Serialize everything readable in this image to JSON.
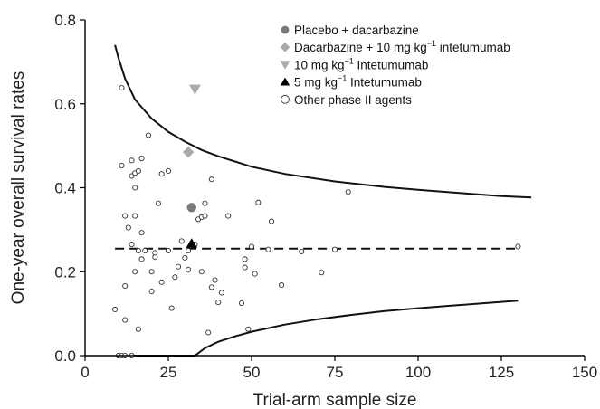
{
  "chart_data": {
    "type": "scatter",
    "xlabel": "Trial-arm sample size",
    "ylabel": "One-year overall survival rates",
    "xlim": [
      0,
      150
    ],
    "ylim": [
      0,
      0.8
    ],
    "x_ticks": [
      0,
      25,
      50,
      75,
      100,
      125,
      150
    ],
    "x_tick_labels": [
      "0",
      "25",
      "50",
      "75",
      "100",
      "125",
      "150"
    ],
    "y_ticks": [
      0.0,
      0.2,
      0.4,
      0.6,
      0.8
    ],
    "y_tick_labels": [
      "0.0",
      "0.2",
      "0.4",
      "0.6",
      "0.8"
    ],
    "grid": false,
    "legend_position": "top-right",
    "colors": {
      "axis": "#000000",
      "curve": "#111111",
      "placebo": "#7a7a7a",
      "diamond": "#a9a9a9",
      "triangle_down": "#a9a9a9",
      "triangle_up": "#000000",
      "other_fill": "#ffffff",
      "other_stroke": "#333333"
    },
    "legend": [
      {
        "label": "Placebo + dacarbazine",
        "marker": "circle-filled"
      },
      {
        "label_main": "Dacarbazine + 10 mg kg",
        "label_sup": "−1",
        "label_tail": " intetumumab",
        "marker": "diamond"
      },
      {
        "label_main": "10 mg kg",
        "label_sup": "−1",
        "label_tail": " Intetumumab",
        "marker": "triangle-down"
      },
      {
        "label_main": "5 mg kg",
        "label_sup": "−1",
        "label_tail": " Intetumumab",
        "marker": "triangle-up"
      },
      {
        "label": "Other phase II agents",
        "marker": "circle-open"
      }
    ],
    "series": [
      {
        "name": "Placebo + dacarbazine",
        "marker": "circle-filled",
        "points": [
          [
            32,
            0.353
          ]
        ]
      },
      {
        "name": "Dacarbazine + 10 mg kg−1 intetumumab",
        "marker": "diamond",
        "points": [
          [
            31,
            0.485
          ]
        ]
      },
      {
        "name": "10 mg kg−1 Intetumumab",
        "marker": "triangle-down",
        "points": [
          [
            33,
            0.635
          ]
        ]
      },
      {
        "name": "5 mg kg−1 Intetumumab",
        "marker": "triangle-up",
        "points": [
          [
            32,
            0.267
          ]
        ]
      },
      {
        "name": "Other phase II agents",
        "marker": "circle-open",
        "points": [
          [
            9,
            0.11
          ],
          [
            10,
            0.0
          ],
          [
            11,
            0.0
          ],
          [
            12,
            0.0
          ],
          [
            14,
            0.0
          ],
          [
            11,
            0.638
          ],
          [
            11,
            0.453
          ],
          [
            12,
            0.333
          ],
          [
            12,
            0.166
          ],
          [
            12,
            0.085
          ],
          [
            13,
            0.305
          ],
          [
            14,
            0.428
          ],
          [
            14,
            0.465
          ],
          [
            14,
            0.265
          ],
          [
            15,
            0.435
          ],
          [
            15,
            0.4
          ],
          [
            15,
            0.333
          ],
          [
            15,
            0.2
          ],
          [
            16,
            0.25
          ],
          [
            16,
            0.063
          ],
          [
            16,
            0.44
          ],
          [
            17,
            0.47
          ],
          [
            17,
            0.293
          ],
          [
            17,
            0.23
          ],
          [
            18,
            0.25
          ],
          [
            19,
            0.525
          ],
          [
            20,
            0.2
          ],
          [
            20,
            0.153
          ],
          [
            21,
            0.235
          ],
          [
            21,
            0.245
          ],
          [
            22,
            0.363
          ],
          [
            23,
            0.433
          ],
          [
            23,
            0.175
          ],
          [
            25,
            0.44
          ],
          [
            25,
            0.25
          ],
          [
            26,
            0.113
          ],
          [
            27,
            0.187
          ],
          [
            28,
            0.212
          ],
          [
            29,
            0.273
          ],
          [
            30,
            0.233
          ],
          [
            31,
            0.205
          ],
          [
            31,
            0.25
          ],
          [
            33,
            0.265
          ],
          [
            34,
            0.325
          ],
          [
            35,
            0.33
          ],
          [
            35,
            0.2
          ],
          [
            36,
            0.363
          ],
          [
            36,
            0.333
          ],
          [
            37,
            0.055
          ],
          [
            38,
            0.42
          ],
          [
            38,
            0.163
          ],
          [
            39,
            0.18
          ],
          [
            40,
            0.127
          ],
          [
            41,
            0.15
          ],
          [
            43,
            0.333
          ],
          [
            47,
            0.125
          ],
          [
            48,
            0.23
          ],
          [
            48,
            0.21
          ],
          [
            49,
            0.063
          ],
          [
            50,
            0.26
          ],
          [
            51,
            0.195
          ],
          [
            52,
            0.365
          ],
          [
            55,
            0.253
          ],
          [
            56,
            0.32
          ],
          [
            59,
            0.168
          ],
          [
            65,
            0.248
          ],
          [
            71,
            0.198
          ],
          [
            75,
            0.253
          ],
          [
            79,
            0.39
          ],
          [
            130,
            0.26
          ]
        ]
      }
    ],
    "reference_line": {
      "name": "",
      "y": 0.255,
      "x_range": [
        9,
        130
      ],
      "style": "dashed"
    },
    "upper_limit_curve": {
      "style": "solid",
      "points": [
        [
          9,
          0.74
        ],
        [
          10,
          0.71
        ],
        [
          12,
          0.66
        ],
        [
          15,
          0.61
        ],
        [
          20,
          0.565
        ],
        [
          25,
          0.533
        ],
        [
          30,
          0.51
        ],
        [
          35,
          0.49
        ],
        [
          40,
          0.475
        ],
        [
          50,
          0.45
        ],
        [
          60,
          0.433
        ],
        [
          75,
          0.415
        ],
        [
          90,
          0.402
        ],
        [
          100,
          0.395
        ],
        [
          115,
          0.386
        ],
        [
          125,
          0.38
        ],
        [
          134,
          0.377
        ]
      ]
    },
    "lower_limit_curve": {
      "style": "solid",
      "points": [
        [
          14,
          0.0
        ],
        [
          33,
          0.0
        ],
        [
          36,
          0.018
        ],
        [
          40,
          0.033
        ],
        [
          45,
          0.046
        ],
        [
          50,
          0.057
        ],
        [
          60,
          0.074
        ],
        [
          70,
          0.087
        ],
        [
          80,
          0.097
        ],
        [
          90,
          0.106
        ],
        [
          100,
          0.113
        ],
        [
          110,
          0.119
        ],
        [
          120,
          0.125
        ],
        [
          130,
          0.131
        ]
      ]
    }
  }
}
